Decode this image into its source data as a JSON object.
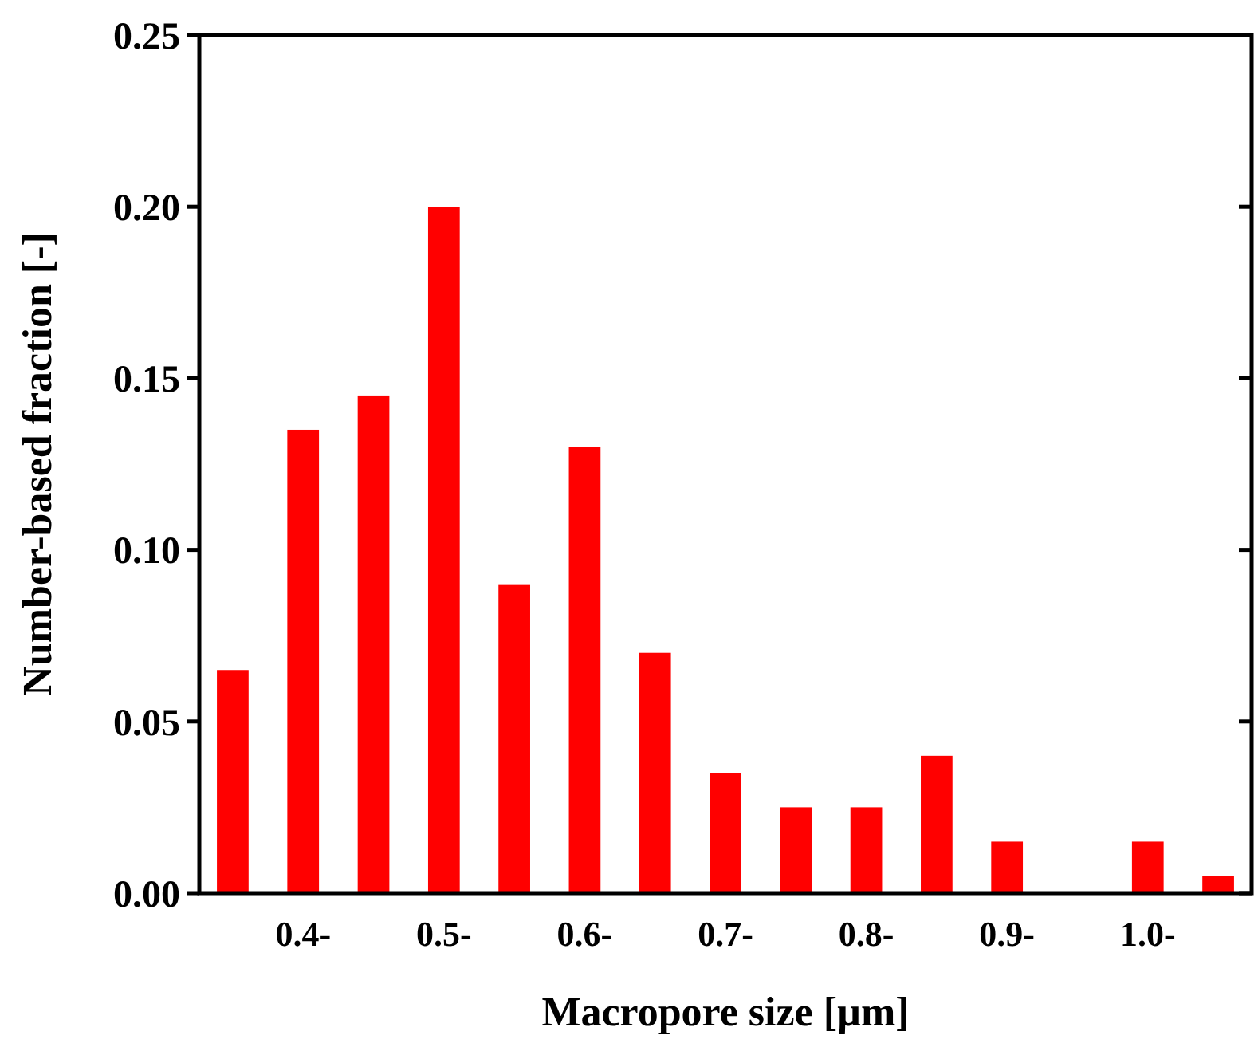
{
  "chart_data": {
    "type": "bar",
    "xlabel": "Macropore size [µm]",
    "ylabel": "Number-based fraction [-]",
    "categories": [
      null,
      "0.4-",
      null,
      "0.5-",
      null,
      "0.6-",
      null,
      "0.7-",
      null,
      "0.8-",
      null,
      "0.9-",
      null,
      "1.0-",
      null
    ],
    "values": [
      0.065,
      0.135,
      0.145,
      0.2,
      0.09,
      0.13,
      0.07,
      0.035,
      0.025,
      0.025,
      0.04,
      0.015,
      0,
      0.015,
      0.005
    ],
    "color": "#ff0000",
    "ylim": [
      0,
      0.25
    ],
    "yticks": [
      {
        "value": 0,
        "label": "0.00"
      },
      {
        "value": 0.05,
        "label": "0.05"
      },
      {
        "value": 0.1,
        "label": "0.10"
      },
      {
        "value": 0.15,
        "label": "0.15"
      },
      {
        "value": 0.2,
        "label": "0.20"
      },
      {
        "value": 0.25,
        "label": "0.25"
      }
    ],
    "grid": false
  }
}
